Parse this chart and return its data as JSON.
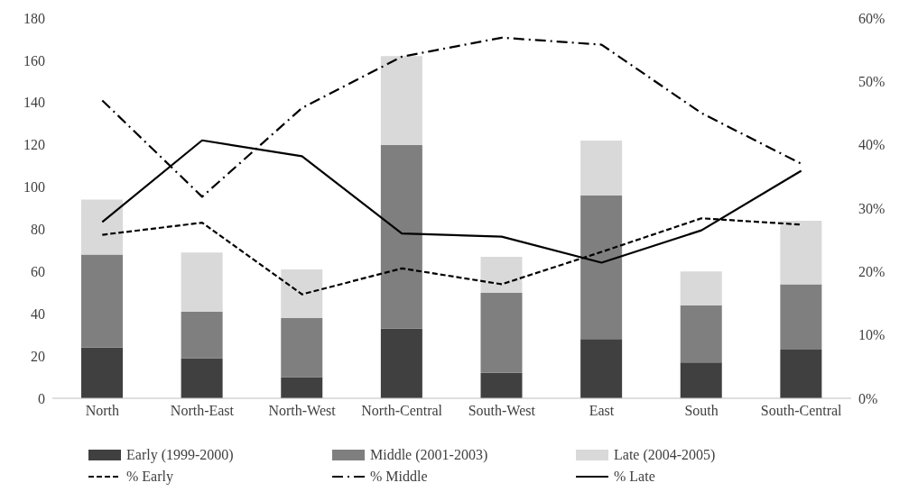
{
  "chart_data": {
    "type": "bar",
    "stacked": true,
    "categories": [
      "North",
      "North-East",
      "North-West",
      "North-Central",
      "South-West",
      "East",
      "South",
      "South-Central"
    ],
    "series": [
      {
        "name": "Early (1999-2000)",
        "color": "#404040",
        "values": [
          24,
          19,
          10,
          33,
          12,
          28,
          17,
          23
        ]
      },
      {
        "name": "Middle (2001-2003)",
        "color": "#7f7f7f",
        "values": [
          44,
          22,
          28,
          87,
          38,
          68,
          27,
          31
        ]
      },
      {
        "name": "Late (2004-2005)",
        "color": "#d9d9d9",
        "values": [
          26,
          28,
          23,
          42,
          17,
          26,
          16,
          30
        ]
      },
      {
        "name": "% Early",
        "type": "line",
        "axis": "y2",
        "color": "#000000",
        "line_style": "dashed",
        "values": [
          25.8,
          27.7,
          16.4,
          20.5,
          18,
          23.1,
          28.4,
          27.4
        ]
      },
      {
        "name": "% Middle",
        "type": "line",
        "axis": "y2",
        "color": "#000000",
        "line_style": "dashdot",
        "values": [
          47,
          31.8,
          45.8,
          53.9,
          56.9,
          55.8,
          45,
          37
        ]
      },
      {
        "name": "% Late",
        "type": "line",
        "axis": "y2",
        "color": "#000000",
        "line_style": "solid",
        "values": [
          27.8,
          40.7,
          38.2,
          26,
          25.5,
          21.4,
          26.5,
          35.9
        ]
      }
    ],
    "ylim": [
      0,
      180
    ],
    "yticks": [
      0,
      20,
      40,
      60,
      80,
      100,
      120,
      140,
      160,
      180
    ],
    "y2lim": [
      0,
      60
    ],
    "y2ticks": [
      {
        "value": 0,
        "label": "0%"
      },
      {
        "value": 10,
        "label": "10%"
      },
      {
        "value": 20,
        "label": "20%"
      },
      {
        "value": 30,
        "label": "30%"
      },
      {
        "value": 40,
        "label": "40%"
      },
      {
        "value": 50,
        "label": "50%"
      },
      {
        "value": 60,
        "label": "60%"
      }
    ],
    "legend": "bottom",
    "marker": "none"
  }
}
